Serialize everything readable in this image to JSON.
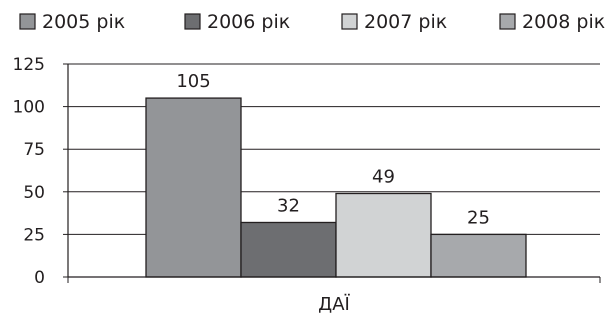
{
  "chart_data": {
    "type": "bar",
    "categories": [
      "ДАЇ"
    ],
    "series": [
      {
        "name": "2005 рік",
        "values": [
          105
        ],
        "color": "#939598"
      },
      {
        "name": "2006 рік",
        "values": [
          32
        ],
        "color": "#6d6e71"
      },
      {
        "name": "2007 рік",
        "values": [
          49
        ],
        "color": "#d1d3d4"
      },
      {
        "name": "2008 рік",
        "values": [
          25
        ],
        "color": "#a7a9ac"
      }
    ],
    "data_labels": [
      "105",
      "32",
      "49",
      "25"
    ],
    "ylim": [
      0,
      125
    ],
    "yticks": [
      0,
      25,
      50,
      75,
      100,
      125
    ],
    "ytick_labels": [
      "0",
      "25",
      "50",
      "75",
      "100",
      "125"
    ],
    "grid": true,
    "legend_position": "top"
  }
}
